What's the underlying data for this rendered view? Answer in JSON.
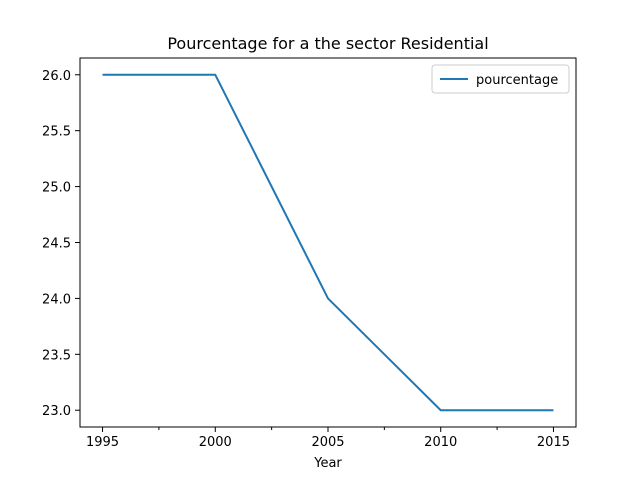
{
  "chart_data": {
    "type": "line",
    "title": "Pourcentage for a the sector Residential",
    "xlabel": "Year",
    "ylabel": "",
    "x": [
      1995,
      2000,
      2005,
      2010,
      2015
    ],
    "series": [
      {
        "name": "pourcentage",
        "values": [
          26.0,
          26.0,
          24.0,
          23.0,
          23.0
        ],
        "color": "#1f77b4"
      }
    ],
    "xlim": [
      1994,
      2016
    ],
    "ylim": [
      22.85,
      26.15
    ],
    "x_ticks": [
      1995,
      2000,
      2005,
      2010,
      2015
    ],
    "x_tick_labels": [
      "1995",
      "2000",
      "2005",
      "2010",
      "2015"
    ],
    "x_minor_ticks": [
      1997.5,
      2002.5,
      2007.5,
      2012.5
    ],
    "y_ticks": [
      23.0,
      23.5,
      24.0,
      24.5,
      25.0,
      25.5,
      26.0
    ],
    "y_tick_labels": [
      "23.0",
      "23.5",
      "24.0",
      "24.5",
      "25.0",
      "25.5",
      "26.0"
    ],
    "grid": false,
    "legend_position": "top-right"
  }
}
